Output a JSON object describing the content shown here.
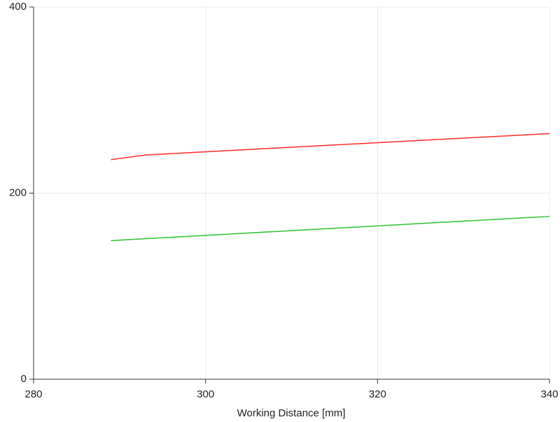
{
  "chart_data": {
    "type": "line",
    "x_label": "Working Distance [mm]",
    "series": [
      {
        "color": "#ff2a2a",
        "x": [
          289,
          293,
          340
        ],
        "values": [
          236,
          241,
          264
        ]
      },
      {
        "color": "#2ec42e",
        "x": [
          289,
          340
        ],
        "values": [
          149,
          175
        ]
      }
    ],
    "xlim": [
      280,
      340
    ],
    "xticks": [
      280,
      300,
      320,
      340
    ],
    "ylim": [
      0,
      400
    ],
    "yticks": [
      0,
      200,
      400
    ],
    "grid": true
  }
}
